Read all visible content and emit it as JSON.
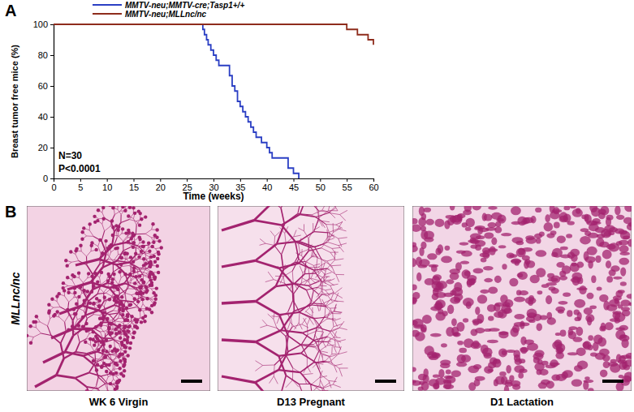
{
  "chart_data": {
    "type": "line",
    "panel_label": "A",
    "x_label": "Time (weeks)",
    "y_label": "Breast tumor free mice (%)",
    "annotations": [
      "N=30",
      "P<0.0001"
    ],
    "xlim": [
      0,
      60
    ],
    "xticks": [
      0,
      5,
      10,
      15,
      20,
      25,
      30,
      35,
      40,
      45,
      50,
      55,
      60
    ],
    "ylim": [
      0,
      100
    ],
    "yticks": [
      0,
      20,
      40,
      60,
      80,
      100
    ],
    "grid": false,
    "legend": "top",
    "series": [
      {
        "name": "MMTV-neu;MMTV-cre;Tasp1+/+",
        "color": "#2b3fc4",
        "line_style": "step",
        "x": [
          0,
          28,
          28.3,
          28.7,
          29,
          29.5,
          30,
          30.5,
          31,
          33,
          33.5,
          34,
          34.5,
          35,
          35.5,
          36,
          36.5,
          37,
          37.5,
          38,
          39,
          40,
          40.5,
          41,
          44,
          45,
          46
        ],
        "values": [
          100,
          96.7,
          93.3,
          90,
          86.7,
          83.3,
          80,
          76.7,
          73.3,
          66.7,
          60,
          56.7,
          50,
          46.7,
          43.3,
          40,
          36.7,
          33.3,
          30,
          26.7,
          23.3,
          20,
          16.7,
          13.3,
          6.7,
          3.3,
          0
        ]
      },
      {
        "name": "MMTV-neu;MLLnc/nc",
        "color": "#8e2c1c",
        "line_style": "step",
        "x": [
          0,
          55,
          57,
          59,
          60
        ],
        "values": [
          100,
          96.7,
          93.3,
          90,
          86.7
        ]
      }
    ]
  },
  "panel_b": {
    "panel_label": "B",
    "row_label": "MLLnc/nc",
    "images": [
      {
        "caption": "WK 6 Virgin"
      },
      {
        "caption": "D13 Pregnant"
      },
      {
        "caption": "D1 Lactation"
      }
    ]
  }
}
